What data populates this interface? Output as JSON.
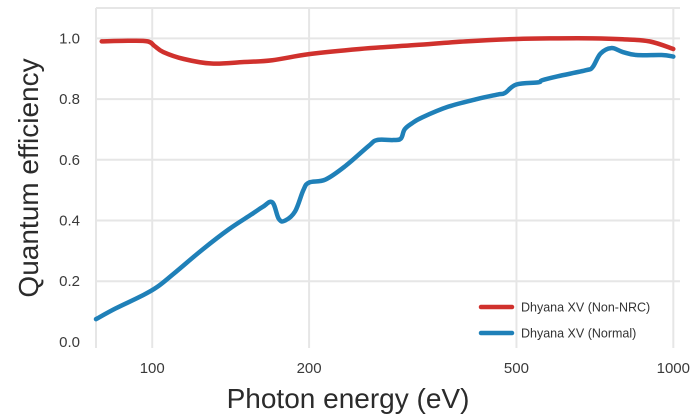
{
  "chart_data": {
    "type": "line",
    "title": "",
    "xlabel": "Photon energy (eV)",
    "ylabel": "Quantum efficiency",
    "x_scale": "log",
    "xlim": [
      78,
      1030
    ],
    "ylim": [
      -0.02,
      1.1
    ],
    "x_ticks": [
      100,
      200,
      500,
      1000
    ],
    "x_tick_labels": [
      "100",
      "200",
      "500",
      "1000"
    ],
    "y_ticks": [
      0.0,
      0.2,
      0.4,
      0.6,
      0.8,
      1.0
    ],
    "y_tick_labels": [
      "0.0",
      "0.2",
      "0.4",
      "0.6",
      "0.8",
      "1.0"
    ],
    "grid": true,
    "legend_position": "bottom-right",
    "series": [
      {
        "name": "Dhyana XV (Non-NRC)",
        "color": "#d0312d",
        "x": [
          80,
          90,
          98,
          101,
          105,
          115,
          130,
          150,
          170,
          200,
          250,
          320,
          400,
          500,
          600,
          700,
          800,
          900,
          1000
        ],
        "y": [
          0.99,
          0.992,
          0.99,
          0.975,
          0.955,
          0.932,
          0.917,
          0.922,
          0.928,
          0.948,
          0.965,
          0.978,
          0.99,
          0.998,
          1.0,
          1.0,
          0.997,
          0.99,
          0.965
        ]
      },
      {
        "name": "Dhyana XV (Normal)",
        "color": "#1f80b8",
        "x": [
          78,
          85,
          95,
          102,
          110,
          125,
          140,
          155,
          163,
          170,
          175,
          180,
          188,
          195,
          200,
          215,
          235,
          260,
          270,
          290,
          300,
          305,
          315,
          330,
          370,
          420,
          460,
          475,
          500,
          550,
          560,
          600,
          680,
          700,
          725,
          760,
          800,
          850,
          950,
          1000
        ],
        "y": [
          0.075,
          0.11,
          0.15,
          0.18,
          0.225,
          0.305,
          0.37,
          0.42,
          0.445,
          0.46,
          0.405,
          0.4,
          0.43,
          0.5,
          0.525,
          0.535,
          0.58,
          0.645,
          0.665,
          0.665,
          0.67,
          0.7,
          0.72,
          0.74,
          0.775,
          0.8,
          0.815,
          0.82,
          0.848,
          0.855,
          0.862,
          0.875,
          0.895,
          0.905,
          0.95,
          0.968,
          0.955,
          0.945,
          0.945,
          0.94
        ]
      }
    ]
  }
}
